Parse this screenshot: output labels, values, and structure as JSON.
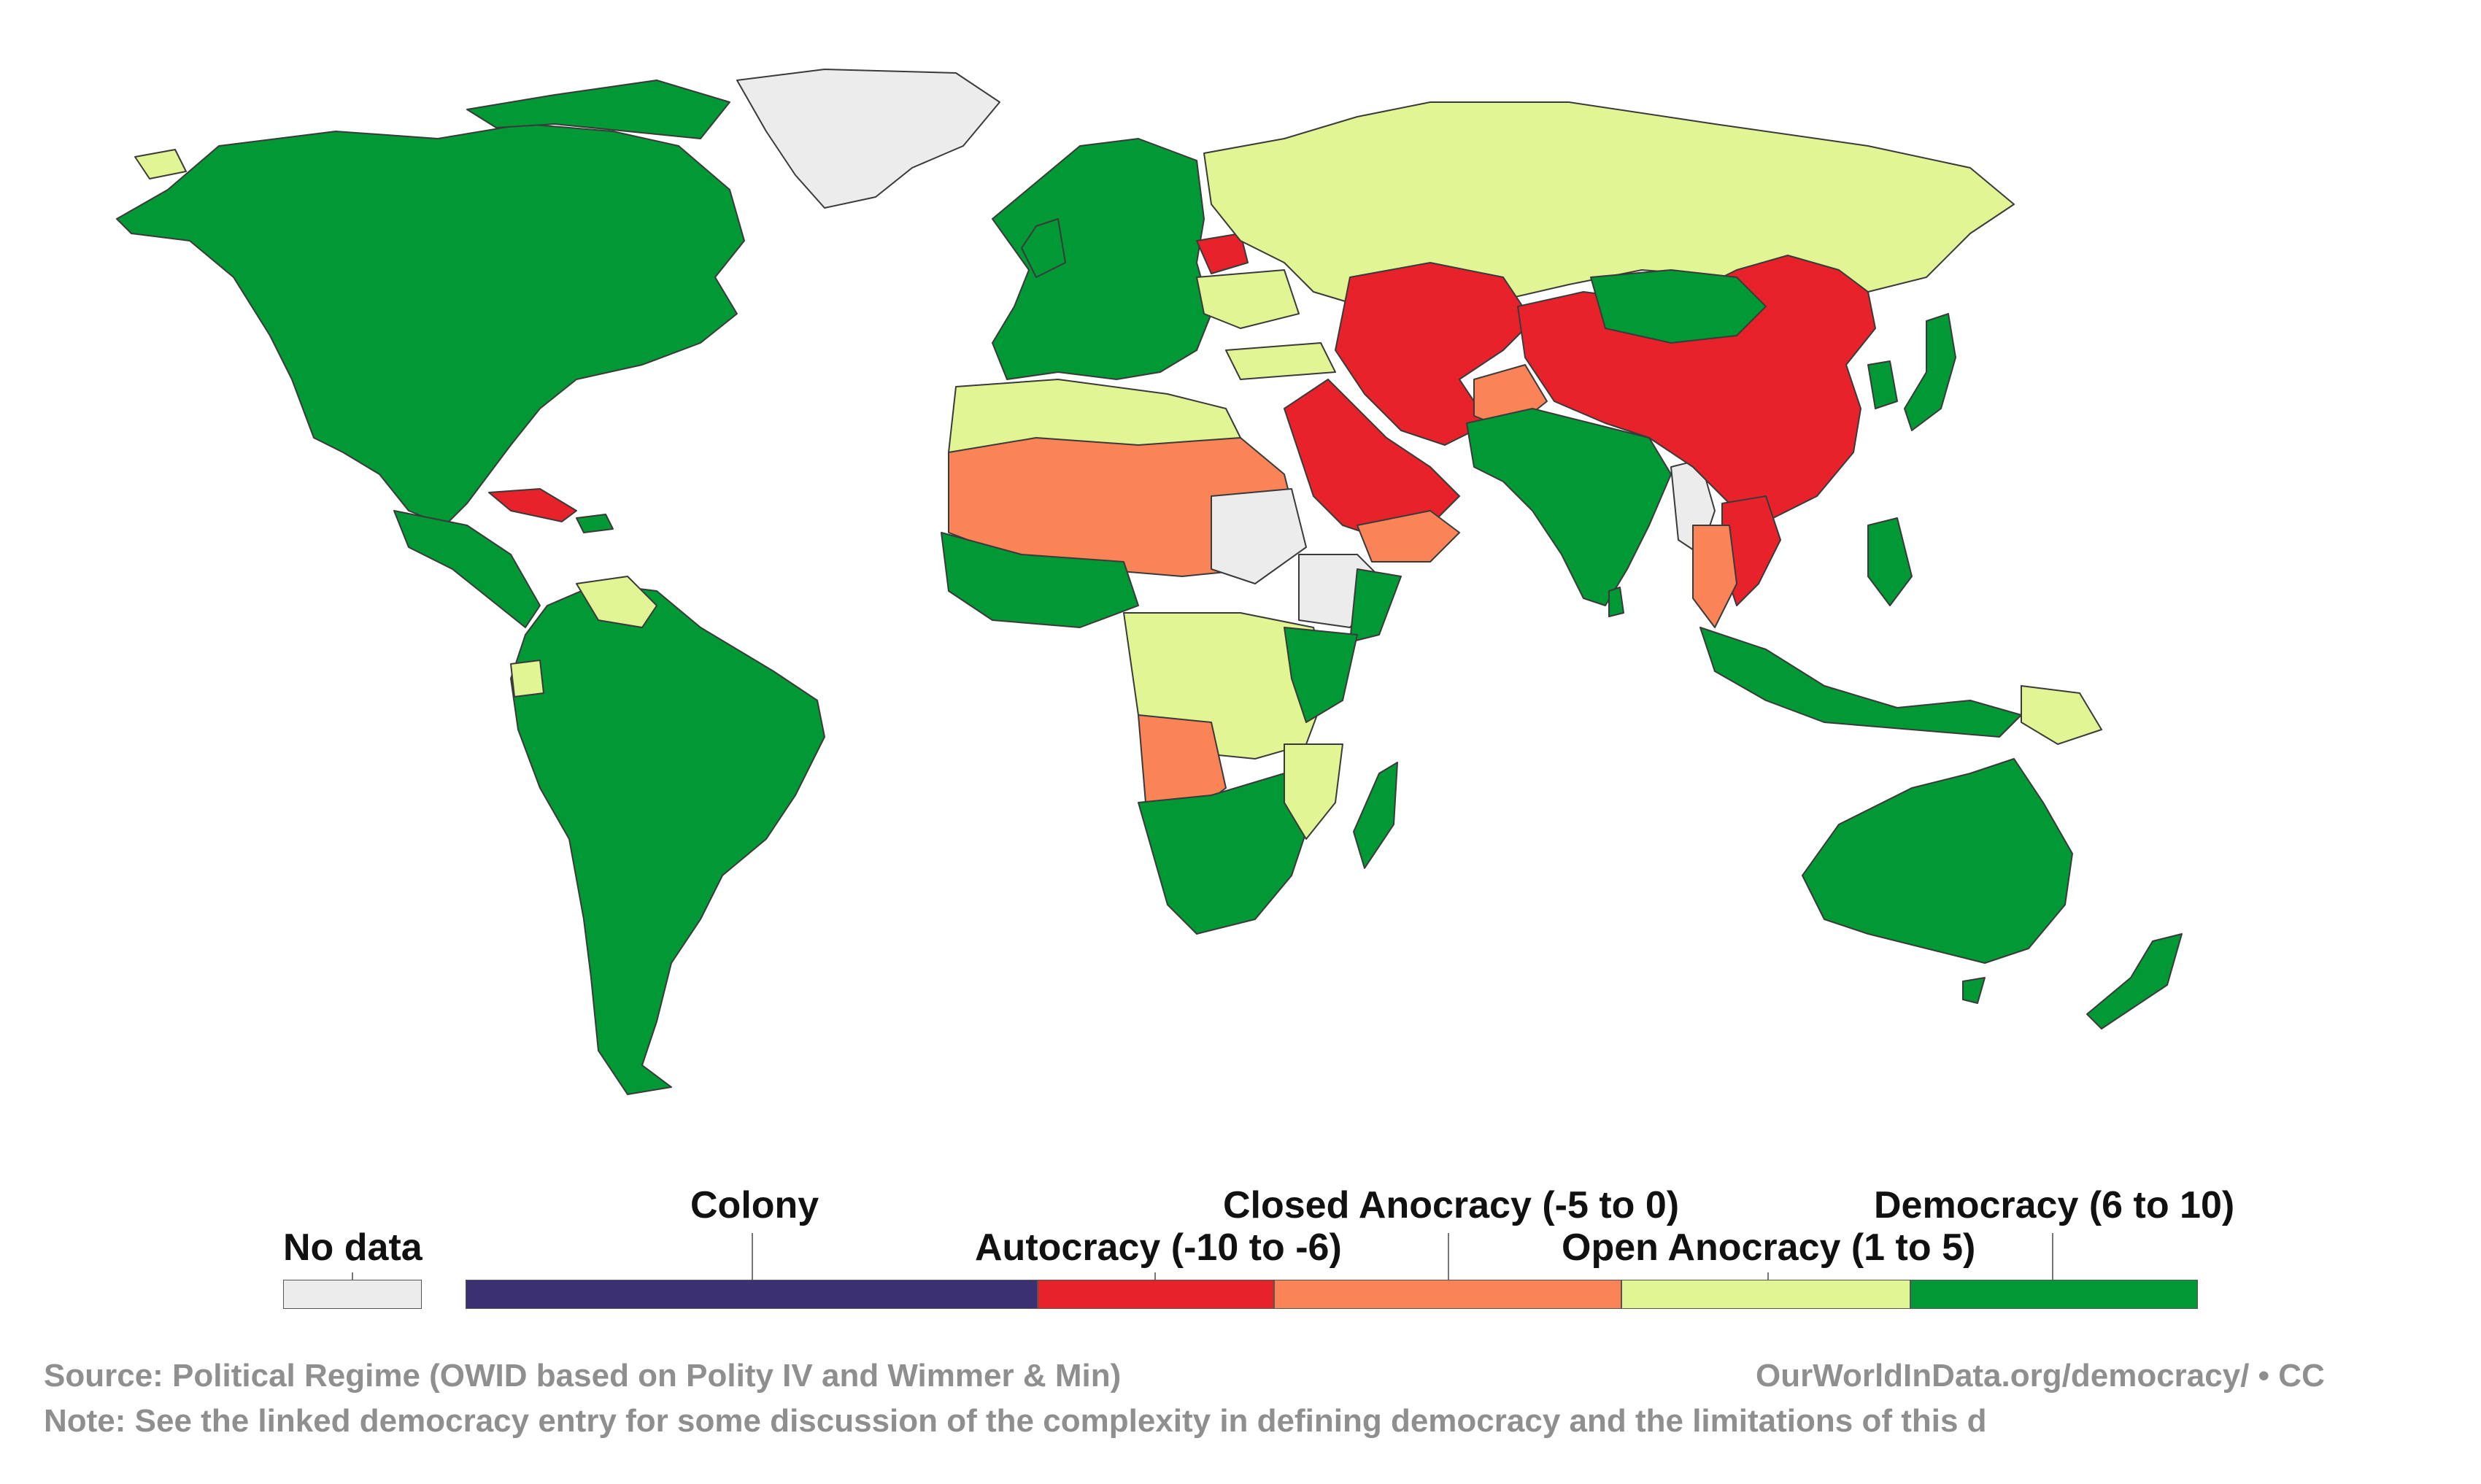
{
  "colors": {
    "no_data": "#ececec",
    "colony": "#3b3072",
    "autocracy": "#e8222a",
    "closed_anocracy": "#fa8458",
    "open_anocracy": "#e1f594",
    "democracy": "#009936"
  },
  "legend": {
    "no_data": "No data",
    "colony": "Colony",
    "autocracy": "Autocracy (-10 to -6)",
    "closed_anocracy": "Closed Anocracy (-5 to 0)",
    "open_anocracy": "Open Anocracy (1 to 5)",
    "democracy": "Democracy (6 to 10)"
  },
  "footer": {
    "source": "Source: Political Regime (OWID based on Polity IV and Wimmer & Min)",
    "url": "OurWorldInData.org/democracy/ • CC",
    "note": "Note: See the linked democracy entry for some discussion of the complexity in defining democracy and the limitations of this d"
  }
}
